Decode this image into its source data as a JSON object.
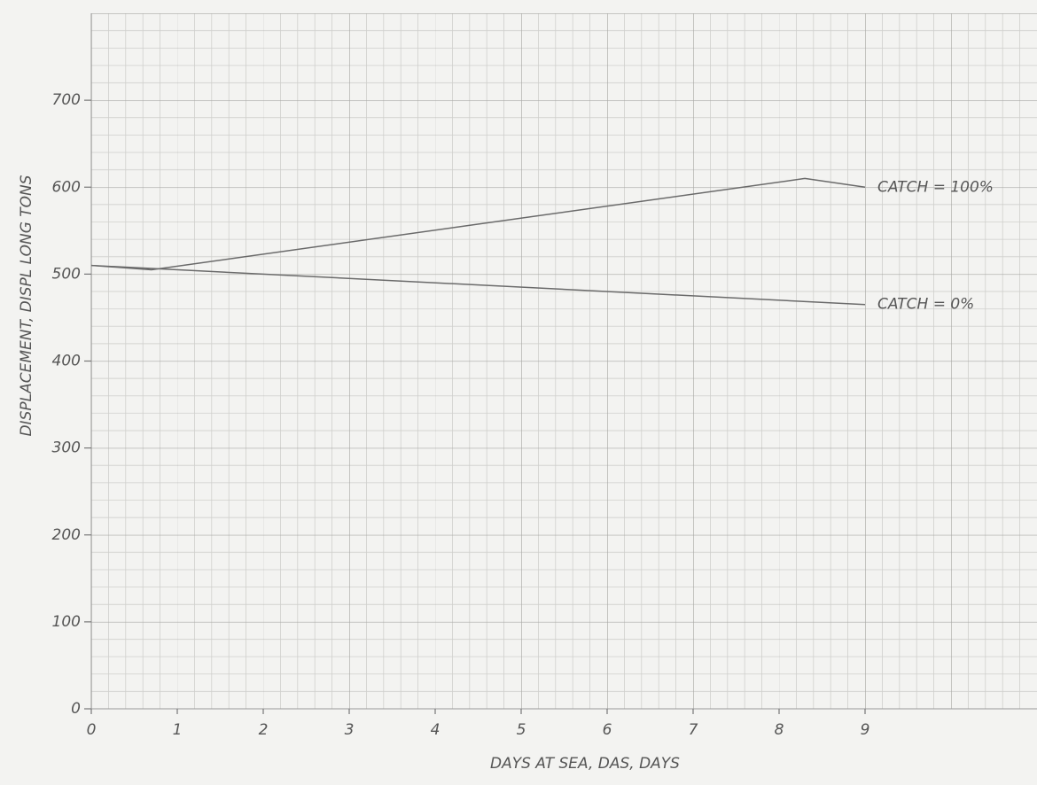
{
  "chart_data": {
    "type": "line",
    "xlabel": "DAYS AT SEA, DAS, DAYS",
    "ylabel": "DISPLACEMENT, DISPL LONG TONS",
    "series": [
      {
        "name": "CATCH = 100%",
        "color": "#6a6a6a",
        "x": [
          0,
          0.7,
          8.3,
          9
        ],
        "values": [
          510,
          505,
          610,
          600
        ]
      },
      {
        "name": "CATCH = 0%",
        "color": "#6a6a6a",
        "x": [
          0,
          9
        ],
        "values": [
          510,
          465
        ]
      }
    ],
    "xlim": [
      0,
      11
    ],
    "xticks": [
      0,
      1,
      2,
      3,
      4,
      5,
      6,
      7,
      8,
      9
    ],
    "ylim": [
      0,
      800
    ],
    "yticks": [
      0,
      100,
      200,
      300,
      400,
      500,
      600,
      700
    ],
    "grid": true
  }
}
